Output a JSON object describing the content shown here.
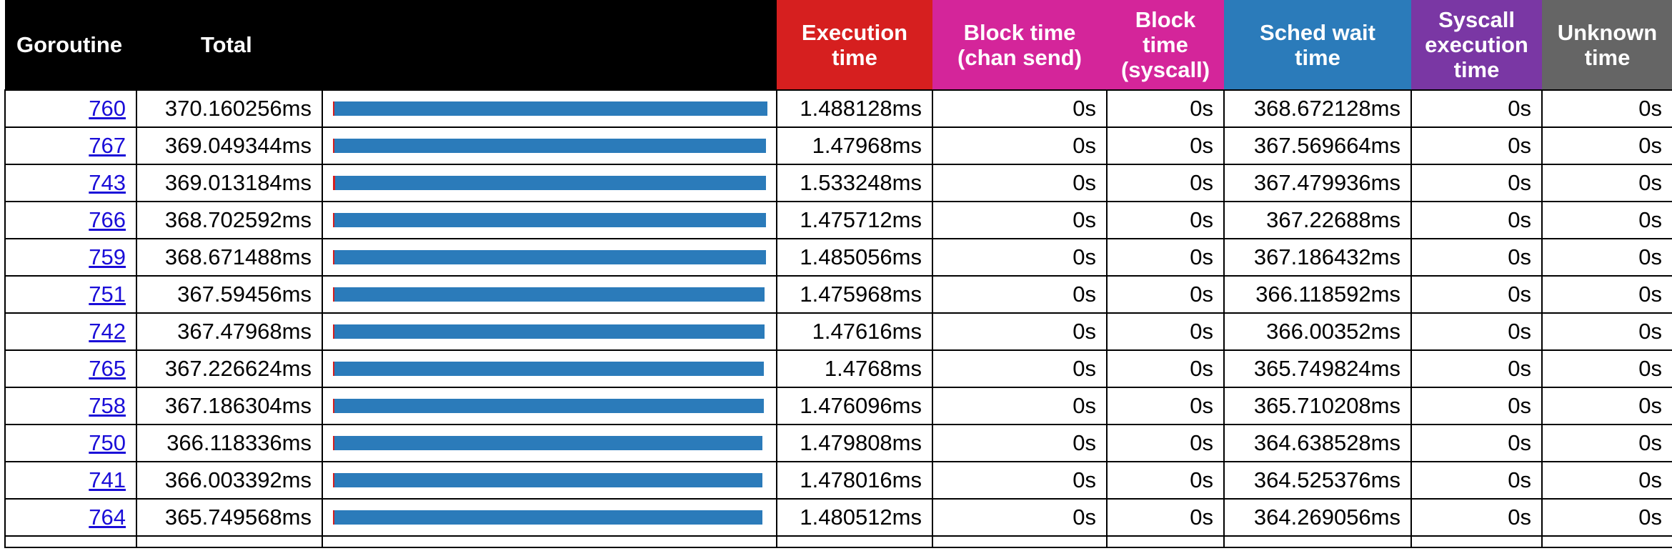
{
  "headers": {
    "goroutine": "Goroutine",
    "total": "Total",
    "execution": [
      "Execution",
      "time"
    ],
    "block_chan_send": [
      "Block time",
      "(chan send)"
    ],
    "block_syscall": [
      "Block",
      "time",
      "(syscall)"
    ],
    "sched_wait": [
      "Sched wait",
      "time"
    ],
    "syscall_exec": [
      "Syscall",
      "execution",
      "time"
    ],
    "unknown": [
      "Unknown",
      "time"
    ]
  },
  "colors": {
    "execution": "#d61f1f",
    "block_chan_send": "#d4259a",
    "block_syscall": "#d4259a",
    "sched_wait": "#2b7bba",
    "syscall_exec": "#7a37a4",
    "unknown": "#656565"
  },
  "rows": [
    {
      "goroutine": "760",
      "total": "370.160256ms",
      "exec": "1.488128ms",
      "block_chan": "0s",
      "block_syscall": "0s",
      "sched_wait": "368.672128ms",
      "syscall_exec": "0s",
      "unknown": "0s",
      "total_value": 370.160256,
      "exec_value": 1.488128,
      "sched_value": 368.672128
    },
    {
      "goroutine": "767",
      "total": "369.049344ms",
      "exec": "1.47968ms",
      "block_chan": "0s",
      "block_syscall": "0s",
      "sched_wait": "367.569664ms",
      "syscall_exec": "0s",
      "unknown": "0s",
      "total_value": 369.049344,
      "exec_value": 1.47968,
      "sched_value": 367.569664
    },
    {
      "goroutine": "743",
      "total": "369.013184ms",
      "exec": "1.533248ms",
      "block_chan": "0s",
      "block_syscall": "0s",
      "sched_wait": "367.479936ms",
      "syscall_exec": "0s",
      "unknown": "0s",
      "total_value": 369.013184,
      "exec_value": 1.533248,
      "sched_value": 367.479936
    },
    {
      "goroutine": "766",
      "total": "368.702592ms",
      "exec": "1.475712ms",
      "block_chan": "0s",
      "block_syscall": "0s",
      "sched_wait": "367.22688ms",
      "syscall_exec": "0s",
      "unknown": "0s",
      "total_value": 368.702592,
      "exec_value": 1.475712,
      "sched_value": 367.22688
    },
    {
      "goroutine": "759",
      "total": "368.671488ms",
      "exec": "1.485056ms",
      "block_chan": "0s",
      "block_syscall": "0s",
      "sched_wait": "367.186432ms",
      "syscall_exec": "0s",
      "unknown": "0s",
      "total_value": 368.671488,
      "exec_value": 1.485056,
      "sched_value": 367.186432
    },
    {
      "goroutine": "751",
      "total": "367.59456ms",
      "exec": "1.475968ms",
      "block_chan": "0s",
      "block_syscall": "0s",
      "sched_wait": "366.118592ms",
      "syscall_exec": "0s",
      "unknown": "0s",
      "total_value": 367.59456,
      "exec_value": 1.475968,
      "sched_value": 366.118592
    },
    {
      "goroutine": "742",
      "total": "367.47968ms",
      "exec": "1.47616ms",
      "block_chan": "0s",
      "block_syscall": "0s",
      "sched_wait": "366.00352ms",
      "syscall_exec": "0s",
      "unknown": "0s",
      "total_value": 367.47968,
      "exec_value": 1.47616,
      "sched_value": 366.00352
    },
    {
      "goroutine": "765",
      "total": "367.226624ms",
      "exec": "1.4768ms",
      "block_chan": "0s",
      "block_syscall": "0s",
      "sched_wait": "365.749824ms",
      "syscall_exec": "0s",
      "unknown": "0s",
      "total_value": 367.226624,
      "exec_value": 1.4768,
      "sched_value": 365.749824
    },
    {
      "goroutine": "758",
      "total": "367.186304ms",
      "exec": "1.476096ms",
      "block_chan": "0s",
      "block_syscall": "0s",
      "sched_wait": "365.710208ms",
      "syscall_exec": "0s",
      "unknown": "0s",
      "total_value": 367.186304,
      "exec_value": 1.476096,
      "sched_value": 365.710208
    },
    {
      "goroutine": "750",
      "total": "366.118336ms",
      "exec": "1.479808ms",
      "block_chan": "0s",
      "block_syscall": "0s",
      "sched_wait": "364.638528ms",
      "syscall_exec": "0s",
      "unknown": "0s",
      "total_value": 366.118336,
      "exec_value": 1.479808,
      "sched_value": 364.638528
    },
    {
      "goroutine": "741",
      "total": "366.003392ms",
      "exec": "1.478016ms",
      "block_chan": "0s",
      "block_syscall": "0s",
      "sched_wait": "364.525376ms",
      "syscall_exec": "0s",
      "unknown": "0s",
      "total_value": 366.003392,
      "exec_value": 1.478016,
      "sched_value": 364.525376
    },
    {
      "goroutine": "764",
      "total": "365.749568ms",
      "exec": "1.480512ms",
      "block_chan": "0s",
      "block_syscall": "0s",
      "sched_wait": "364.269056ms",
      "syscall_exec": "0s",
      "unknown": "0s",
      "total_value": 365.749568,
      "exec_value": 1.480512,
      "sched_value": 364.269056
    }
  ]
}
